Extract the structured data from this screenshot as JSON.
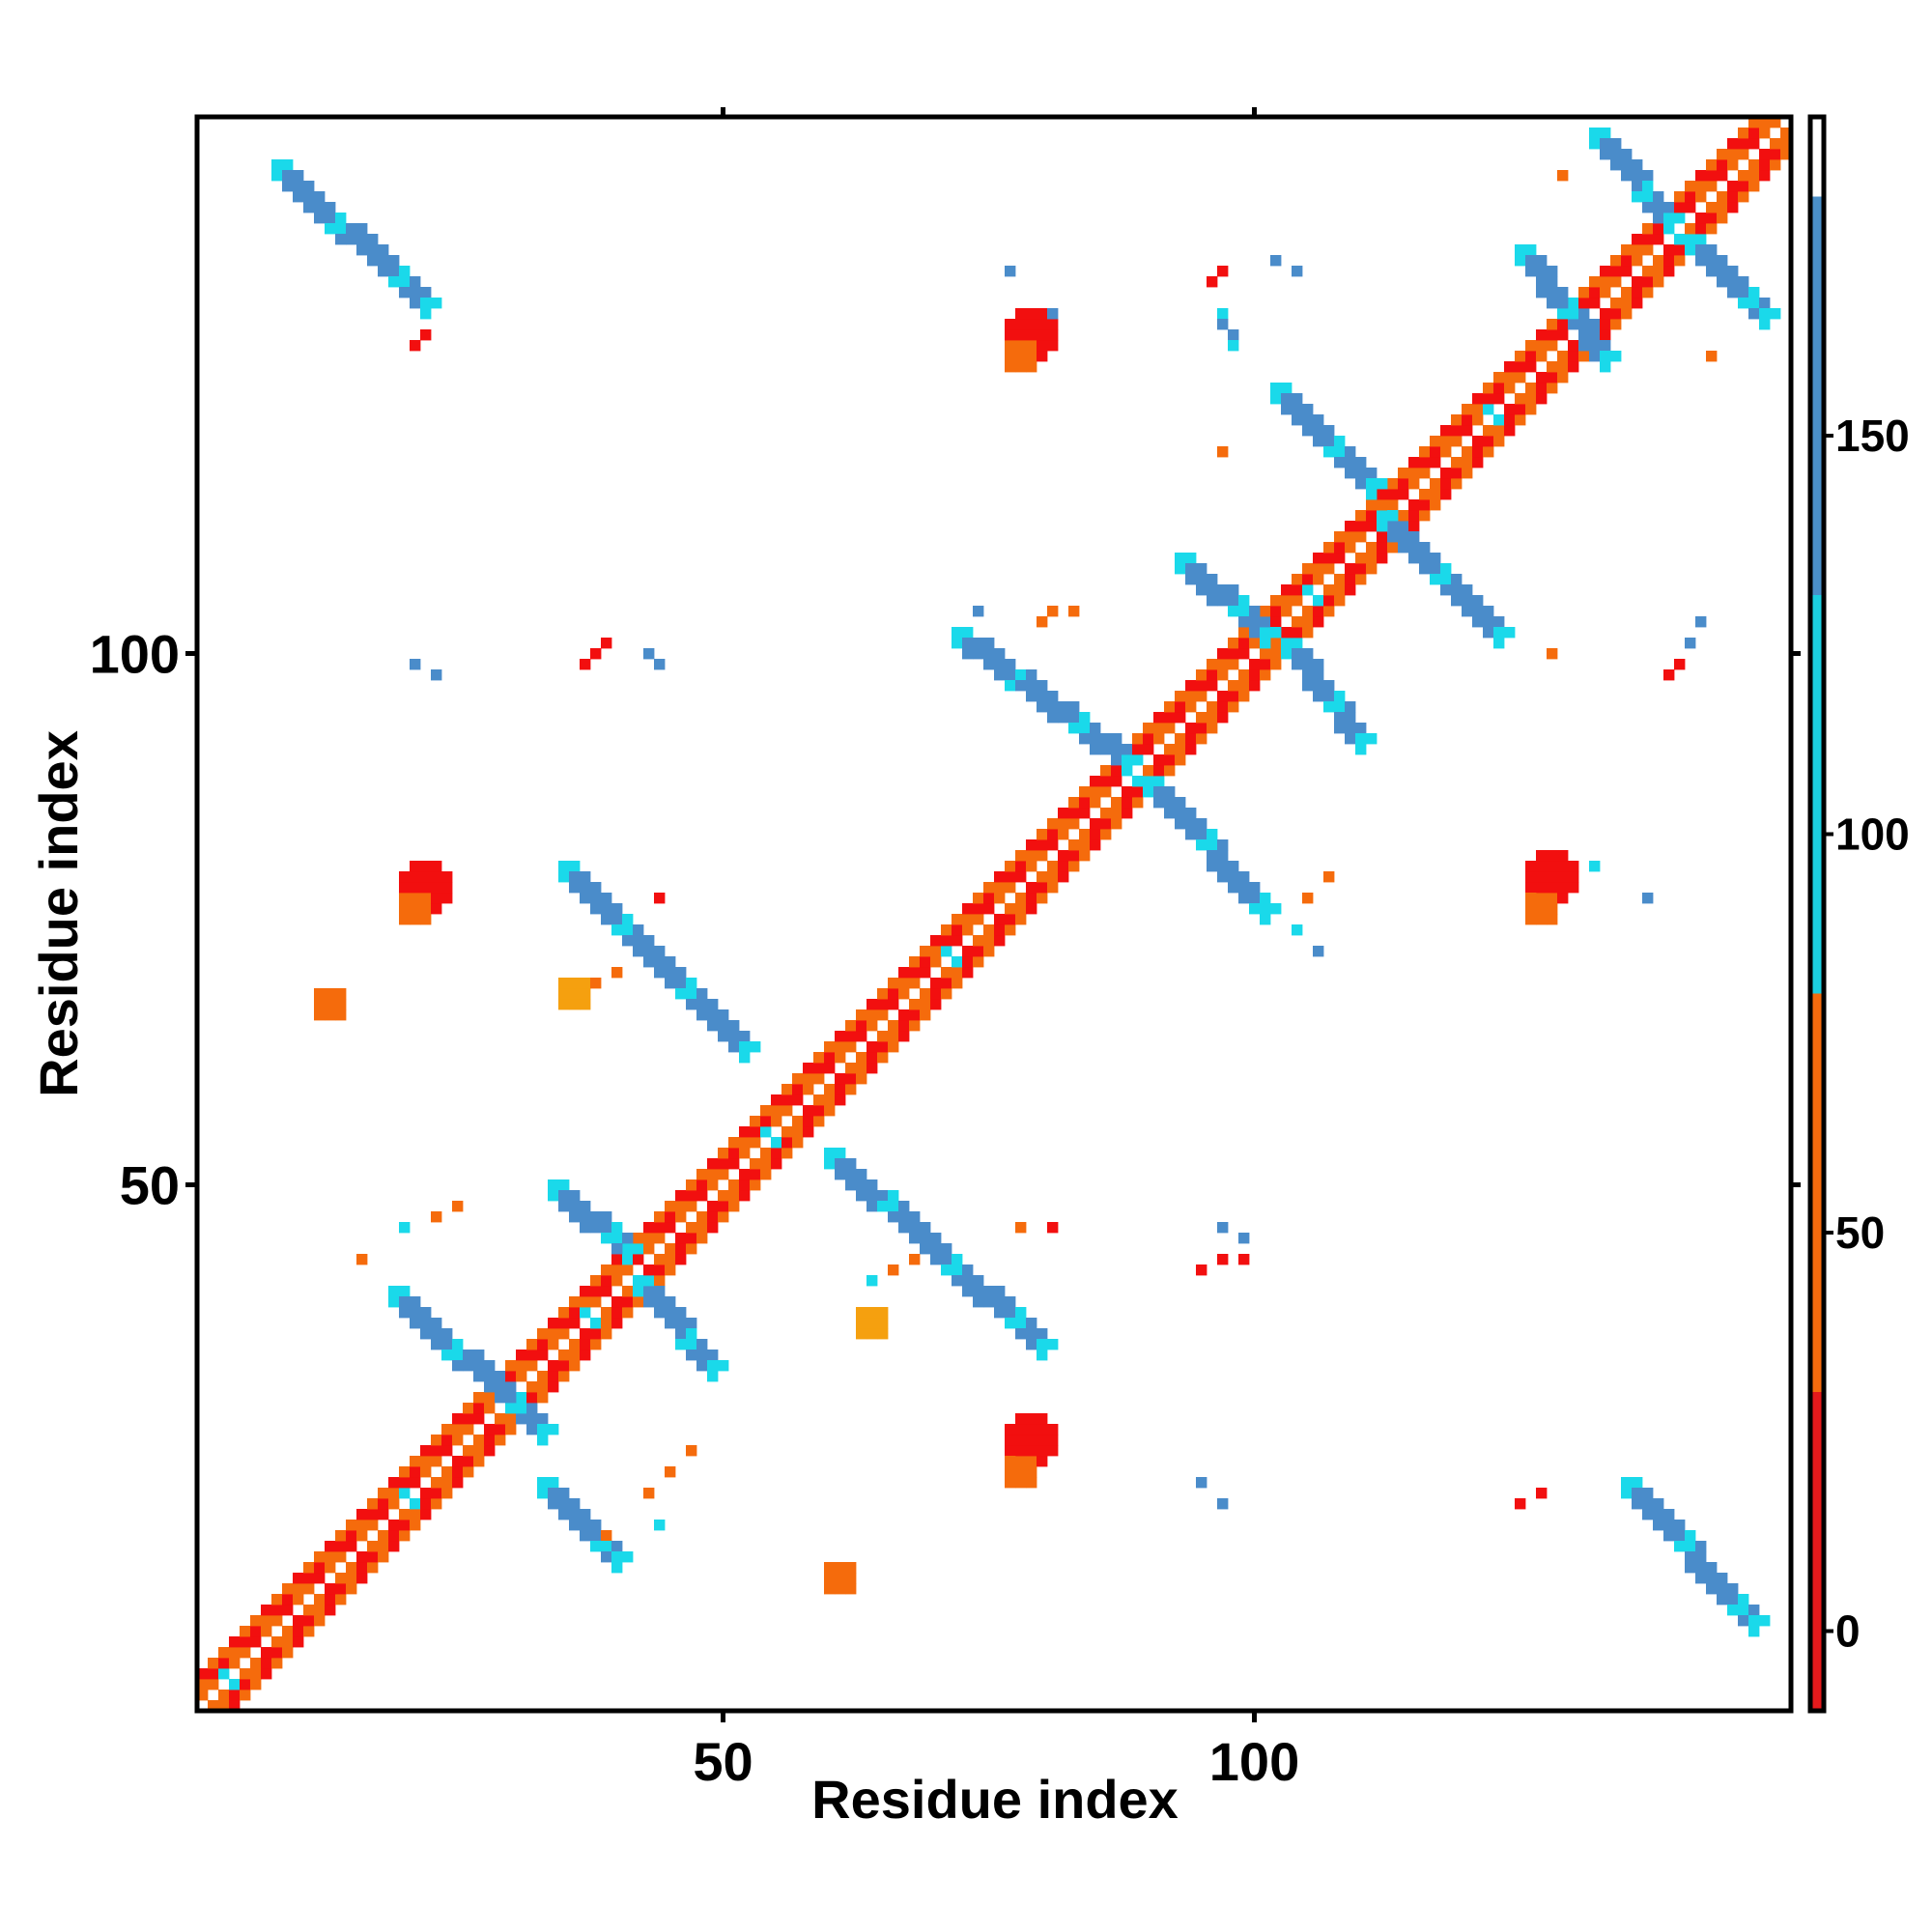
{
  "chart_data": {
    "type": "heatmap",
    "title": "",
    "xlabel": "Residue index",
    "ylabel": "Residue index",
    "xlim": [
      1,
      150
    ],
    "ylim": [
      1,
      150
    ],
    "x_ticks": [
      {
        "value": 50,
        "label": "50"
      },
      {
        "value": 100,
        "label": "100"
      }
    ],
    "y_ticks": [
      {
        "value": 50,
        "label": "50"
      },
      {
        "value": 100,
        "label": "100"
      }
    ],
    "colorbar": {
      "range": [
        -10,
        190
      ],
      "ticks": [
        {
          "value": 0,
          "label": "0"
        },
        {
          "value": 50,
          "label": "50"
        },
        {
          "value": 100,
          "label": "100"
        },
        {
          "value": 150,
          "label": "150"
        }
      ],
      "bands": [
        {
          "from": -10,
          "to": 30,
          "color": "#e41a1c"
        },
        {
          "from": 30,
          "to": 80,
          "color": "#f46a0d"
        },
        {
          "from": 80,
          "to": 130,
          "color": "#1ccfe0"
        },
        {
          "from": 130,
          "to": 180,
          "color": "#4a8fc8"
        },
        {
          "from": 180,
          "to": 190,
          "color": "#ffffff"
        }
      ]
    },
    "palette": {
      "red": "#f20f0f",
      "orange": "#f56b0c",
      "amber": "#f5a00f",
      "cyan": "#1ad9ea",
      "steel": "#4a8cca"
    },
    "diagonal": {
      "i_range": [
        1,
        150
      ],
      "offsets": [
        1,
        2,
        3
      ]
    },
    "streaks": [
      {
        "start": [
          8,
          146
        ],
        "end": [
          22,
          133
        ],
        "thick": 2,
        "color": "steel"
      },
      {
        "start": [
          19,
          40
        ],
        "end": [
          33,
          27
        ],
        "thick": 2,
        "color": "steel"
      },
      {
        "start": [
          33,
          22
        ],
        "end": [
          40,
          15
        ],
        "thick": 2,
        "color": "steel"
      },
      {
        "start": [
          34,
          50
        ],
        "end": [
          41,
          44
        ],
        "thick": 2,
        "color": "steel"
      },
      {
        "start": [
          42,
          41
        ],
        "end": [
          49,
          33
        ],
        "thick": 2,
        "color": "steel"
      },
      {
        "start": [
          35,
          80
        ],
        "end": [
          52,
          63
        ],
        "thick": 2,
        "color": "steel"
      },
      {
        "start": [
          60,
          53
        ],
        "end": [
          80,
          35
        ],
        "thick": 2,
        "color": "steel"
      },
      {
        "start": [
          72,
          102
        ],
        "end": [
          88,
          90
        ],
        "thick": 2,
        "color": "steel"
      },
      {
        "start": [
          90,
          88
        ],
        "end": [
          101,
          76
        ],
        "thick": 2,
        "color": "steel"
      },
      {
        "start": [
          93,
          109
        ],
        "end": [
          101,
          102
        ],
        "thick": 2,
        "color": "steel"
      },
      {
        "start": [
          103,
          101
        ],
        "end": [
          110,
          92
        ],
        "thick": 2,
        "color": "steel"
      },
      {
        "start": [
          102,
          125
        ],
        "end": [
          111,
          116
        ],
        "thick": 2,
        "color": "steel"
      },
      {
        "start": [
          112,
          113
        ],
        "end": [
          123,
          102
        ],
        "thick": 2,
        "color": "steel"
      },
      {
        "start": [
          125,
          138
        ],
        "end": [
          133,
          128
        ],
        "thick": 2,
        "color": "steel"
      },
      {
        "start": [
          132,
          149
        ],
        "end": [
          139,
          141
        ],
        "thick": 2,
        "color": "steel"
      },
      {
        "start": [
          141,
          139
        ],
        "end": [
          148,
          132
        ],
        "thick": 2,
        "color": "steel"
      },
      {
        "start": [
          135,
          22
        ],
        "end": [
          147,
          9
        ],
        "thick": 2,
        "color": "steel"
      },
      {
        "start": [
          97,
          132
        ],
        "end": [
          98,
          129
        ],
        "thick": 1,
        "color": "steel"
      }
    ],
    "blobs": [
      {
        "center": [
          22,
          78
        ],
        "radius": 2,
        "color": "red"
      },
      {
        "center": [
          21,
          76
        ],
        "radius": 1,
        "color": "orange"
      },
      {
        "center": [
          79,
          130
        ],
        "radius": 2,
        "color": "red"
      },
      {
        "center": [
          78,
          128
        ],
        "radius": 1,
        "color": "orange"
      },
      {
        "center": [
          79,
          26
        ],
        "radius": 2,
        "color": "red"
      },
      {
        "center": [
          78,
          23
        ],
        "radius": 1,
        "color": "orange"
      },
      {
        "center": [
          128,
          79
        ],
        "radius": 2,
        "color": "red"
      },
      {
        "center": [
          127,
          76
        ],
        "radius": 1,
        "color": "orange"
      },
      {
        "center": [
          36,
          68
        ],
        "radius": 1,
        "color": "amber"
      },
      {
        "center": [
          64,
          37
        ],
        "radius": 1,
        "color": "amber"
      },
      {
        "center": [
          13,
          67
        ],
        "radius": 1,
        "color": "orange"
      },
      {
        "center": [
          61,
          13
        ],
        "radius": 1,
        "color": "orange"
      }
    ],
    "specks": [
      {
        "at": [
          22,
          130
        ],
        "color": "red"
      },
      {
        "at": [
          21,
          129
        ],
        "color": "red"
      },
      {
        "at": [
          39,
          101
        ],
        "color": "red"
      },
      {
        "at": [
          38,
          100
        ],
        "color": "red"
      },
      {
        "at": [
          37,
          99
        ],
        "color": "red"
      },
      {
        "at": [
          43,
          100
        ],
        "color": "steel"
      },
      {
        "at": [
          44,
          99
        ],
        "color": "steel"
      },
      {
        "at": [
          21,
          99
        ],
        "color": "steel"
      },
      {
        "at": [
          23,
          98
        ],
        "color": "steel"
      },
      {
        "at": [
          77,
          136
        ],
        "color": "steel"
      },
      {
        "at": [
          81,
          132
        ],
        "color": "steel"
      },
      {
        "at": [
          97,
          136
        ],
        "color": "red"
      },
      {
        "at": [
          96,
          135
        ],
        "color": "red"
      },
      {
        "at": [
          102,
          137
        ],
        "color": "steel"
      },
      {
        "at": [
          104,
          136
        ],
        "color": "steel"
      },
      {
        "at": [
          129,
          145
        ],
        "color": "orange"
      },
      {
        "at": [
          143,
          128
        ],
        "color": "orange"
      },
      {
        "at": [
          97,
          119
        ],
        "color": "orange"
      },
      {
        "at": [
          142,
          103
        ],
        "color": "steel"
      },
      {
        "at": [
          141,
          101
        ],
        "color": "steel"
      },
      {
        "at": [
          128,
          100
        ],
        "color": "orange"
      },
      {
        "at": [
          140,
          99
        ],
        "color": "red"
      },
      {
        "at": [
          139,
          98
        ],
        "color": "red"
      },
      {
        "at": [
          74,
          104
        ],
        "color": "steel"
      },
      {
        "at": [
          81,
          104
        ],
        "color": "orange"
      },
      {
        "at": [
          80,
          103
        ],
        "color": "orange"
      },
      {
        "at": [
          83,
          104
        ],
        "color": "orange"
      },
      {
        "at": [
          132,
          80
        ],
        "color": "cyan"
      },
      {
        "at": [
          137,
          77
        ],
        "color": "steel"
      },
      {
        "at": [
          44,
          77
        ],
        "color": "red"
      },
      {
        "at": [
          107,
          79
        ],
        "color": "orange"
      },
      {
        "at": [
          105,
          77
        ],
        "color": "orange"
      },
      {
        "at": [
          104,
          74
        ],
        "color": "cyan"
      },
      {
        "at": [
          106,
          72
        ],
        "color": "steel"
      },
      {
        "at": [
          40,
          70
        ],
        "color": "orange"
      },
      {
        "at": [
          38,
          69
        ],
        "color": "orange"
      },
      {
        "at": [
          25,
          48
        ],
        "color": "orange"
      },
      {
        "at": [
          23,
          47
        ],
        "color": "orange"
      },
      {
        "at": [
          20,
          46
        ],
        "color": "cyan"
      },
      {
        "at": [
          78,
          46
        ],
        "color": "orange"
      },
      {
        "at": [
          81,
          46
        ],
        "color": "red"
      },
      {
        "at": [
          97,
          46
        ],
        "color": "steel"
      },
      {
        "at": [
          99,
          45
        ],
        "color": "steel"
      },
      {
        "at": [
          97,
          43
        ],
        "color": "red"
      },
      {
        "at": [
          99,
          43
        ],
        "color": "red"
      },
      {
        "at": [
          95,
          42
        ],
        "color": "red"
      },
      {
        "at": [
          68,
          43
        ],
        "color": "orange"
      },
      {
        "at": [
          66,
          42
        ],
        "color": "orange"
      },
      {
        "at": [
          64,
          41
        ],
        "color": "cyan"
      },
      {
        "at": [
          95,
          22
        ],
        "color": "steel"
      },
      {
        "at": [
          97,
          20
        ],
        "color": "steel"
      },
      {
        "at": [
          127,
          21
        ],
        "color": "red"
      },
      {
        "at": [
          125,
          20
        ],
        "color": "red"
      },
      {
        "at": [
          16,
          43
        ],
        "color": "orange"
      },
      {
        "at": [
          47,
          25
        ],
        "color": "orange"
      },
      {
        "at": [
          45,
          23
        ],
        "color": "orange"
      },
      {
        "at": [
          43,
          21
        ],
        "color": "orange"
      },
      {
        "at": [
          44,
          18
        ],
        "color": "cyan"
      },
      {
        "at": [
          39,
          17
        ],
        "color": "orange"
      }
    ]
  }
}
